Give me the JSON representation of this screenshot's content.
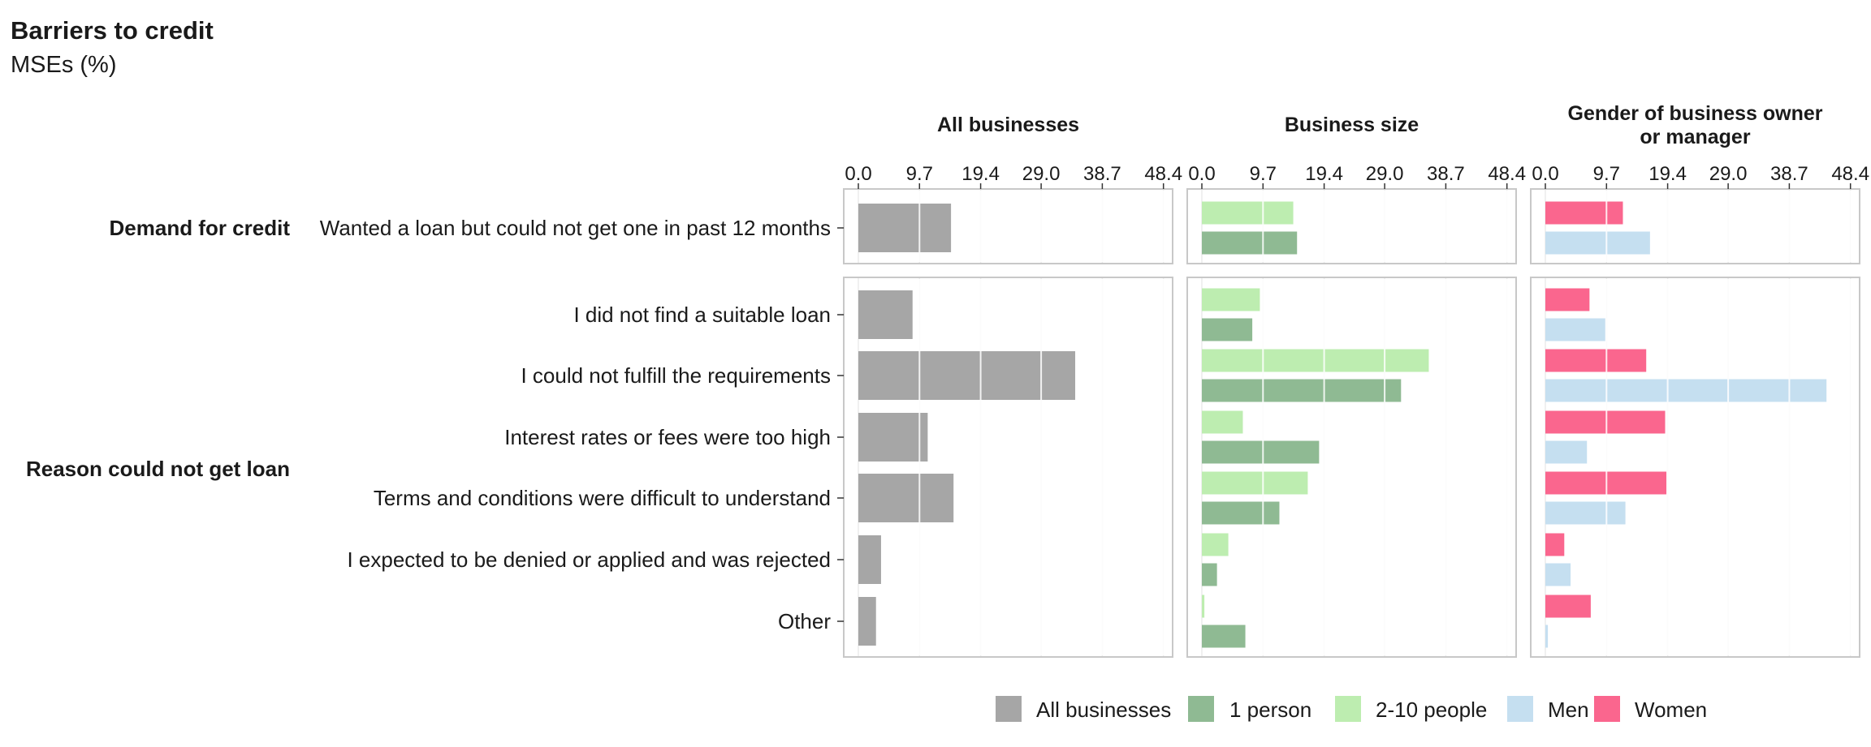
{
  "title": "Barriers to credit",
  "subtitle": "MSEs (%)",
  "chart_data": {
    "type": "bar",
    "orientation": "horizontal",
    "xlim": [
      0,
      50.5
    ],
    "ticks": [
      "0.0",
      "9.7",
      "19.4",
      "29.0",
      "38.7",
      "48.4"
    ],
    "grid": true,
    "legend_position": "bottom",
    "panels": [
      {
        "key": "all",
        "title": "All businesses",
        "series": [
          "All businesses"
        ]
      },
      {
        "key": "size",
        "title": "Business size",
        "series": [
          "2-10 people",
          "1 person"
        ]
      },
      {
        "key": "gender",
        "title": "Gender of business owner or manager",
        "title_lines": [
          "Gender of business owner",
          "or manager"
        ],
        "series": [
          "Women",
          "Men"
        ]
      }
    ],
    "groups": [
      {
        "label": "Demand for credit",
        "rows": [
          "Wanted a loan but could not get one in past 12 months"
        ]
      },
      {
        "label": "Reason could not get loan",
        "rows": [
          "I did not find a suitable loan",
          "I could not fulfill the requirements",
          "Interest rates or fees were too high",
          "Terms and conditions were difficult to understand",
          "I expected to be denied or applied and was rejected",
          "Other"
        ]
      }
    ],
    "values": {
      "All businesses": [
        14.7,
        8.6,
        34.4,
        11.0,
        15.1,
        3.6,
        2.8
      ],
      "2-10 people": [
        14.5,
        9.2,
        36.0,
        6.5,
        16.8,
        4.2,
        0.4
      ],
      "1 person": [
        15.1,
        8.0,
        31.6,
        18.6,
        12.3,
        2.4,
        6.9
      ],
      "Women": [
        12.3,
        7.0,
        16.0,
        19.0,
        19.2,
        3.0,
        7.2
      ],
      "Men": [
        16.6,
        9.5,
        44.6,
        6.6,
        12.7,
        4.0,
        0.4
      ]
    },
    "colors": {
      "All businesses": "#a6a6a6",
      "1 person": "#8fba93",
      "2-10 people": "#bdedb0",
      "Men": "#c5dff0",
      "Women": "#fa668e"
    },
    "legend": [
      "All businesses",
      "1 person",
      "2-10 people",
      "Men",
      "Women"
    ]
  }
}
